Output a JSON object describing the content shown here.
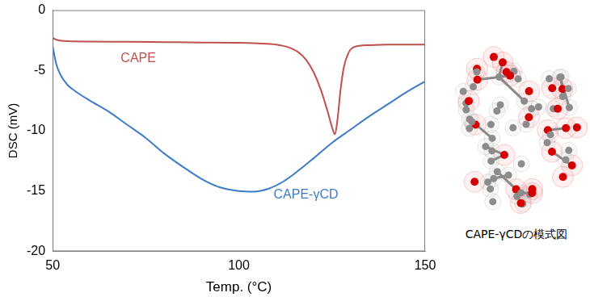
{
  "chart_data": {
    "type": "line",
    "x_label": "Temp. (°C)",
    "y_label": "DSC (mV)",
    "xlim": [
      50,
      150
    ],
    "xticks": [
      50,
      100,
      150
    ],
    "ylim": [
      -20,
      0
    ],
    "yticks": [
      -20,
      -15,
      -10,
      -5,
      0
    ],
    "grid": false,
    "series": [
      {
        "name": "CAPE",
        "color": "#c0504d",
        "x": [
          50,
          51,
          53,
          60,
          70,
          80,
          90,
          100,
          105,
          110,
          113,
          116,
          118,
          120,
          122,
          124,
          125,
          125.8,
          126.5,
          127.3,
          128.2,
          129.5,
          131,
          135,
          140,
          150
        ],
        "values": [
          -2.3,
          -2.45,
          -2.55,
          -2.6,
          -2.62,
          -2.65,
          -2.68,
          -2.7,
          -2.75,
          -2.85,
          -3.05,
          -3.5,
          -4.1,
          -5.1,
          -6.6,
          -8.6,
          -9.7,
          -10.3,
          -9.0,
          -6.6,
          -4.7,
          -3.5,
          -3.05,
          -2.9,
          -2.85,
          -2.85
        ]
      },
      {
        "name": "CAPE-γCD",
        "color": "#3d7cc9",
        "x": [
          50,
          51,
          52,
          54,
          56,
          60,
          65,
          70,
          75,
          80,
          85,
          90,
          95,
          100,
          104,
          108,
          112,
          116,
          120,
          125,
          130,
          135,
          140,
          145,
          150
        ],
        "values": [
          -3.0,
          -4.5,
          -5.3,
          -6.2,
          -6.7,
          -7.5,
          -8.4,
          -9.5,
          -10.6,
          -11.9,
          -13.0,
          -14.0,
          -14.7,
          -15.0,
          -15.05,
          -14.8,
          -14.2,
          -13.3,
          -12.3,
          -11.0,
          -9.9,
          -8.8,
          -7.8,
          -6.8,
          -5.9
        ]
      }
    ],
    "annotations": [
      {
        "text": "CAPE",
        "x": 73,
        "y": -4.0,
        "color": "#c0504d"
      },
      {
        "text": "CAPE-γCD",
        "x": 118,
        "y": -15.3,
        "color": "#3d7cc9"
      }
    ]
  },
  "caption": "CAPE-γCDの模式図"
}
